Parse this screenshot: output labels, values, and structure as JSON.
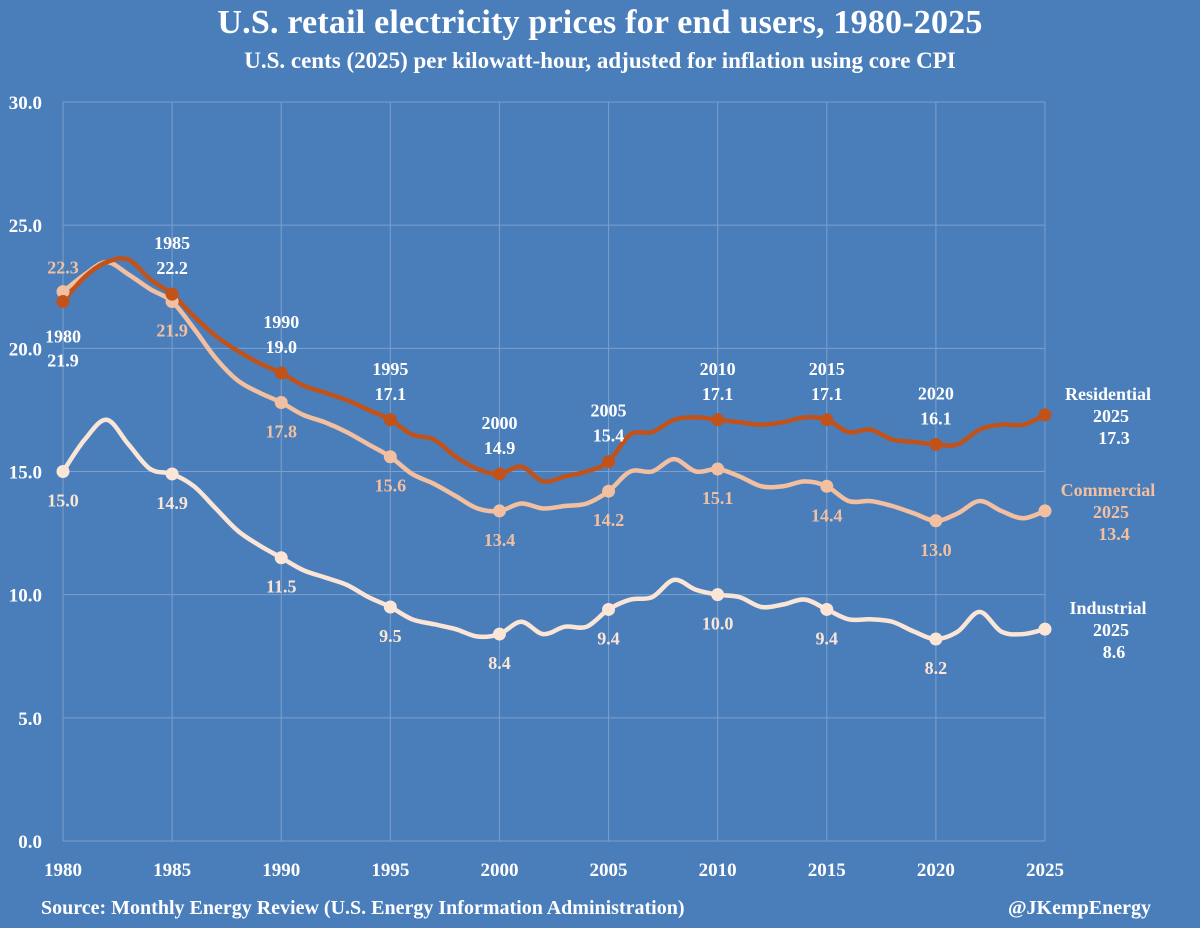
{
  "colors": {
    "background": "#4a7ebb",
    "grid": "#7c9fcc",
    "residential": "#c0521a",
    "commercial": "#f2c0a0",
    "industrial": "#fbe5d6",
    "axis_text": "#ffffff"
  },
  "footer": {
    "source": "Source: Monthly Energy Review (U.S. Energy Information Administration)",
    "handle": "@JKempEnergy"
  },
  "chart_data": {
    "type": "line",
    "title": "U.S. retail electricity prices for end users, 1980-2025",
    "subtitle": "U.S. cents (2025) per kilowatt-hour, adjusted for inflation using core CPI",
    "xlabel": "",
    "ylabel": "",
    "xlim": [
      1980,
      2025
    ],
    "ylim": [
      0,
      30
    ],
    "xticks": [
      "1980",
      "1985",
      "1990",
      "1995",
      "2000",
      "2005",
      "2010",
      "2015",
      "2020",
      "2025"
    ],
    "yticks": [
      "0.0",
      "5.0",
      "10.0",
      "15.0",
      "20.0",
      "25.0",
      "30.0"
    ],
    "grid": true,
    "series": [
      {
        "name": "Residential",
        "color_key": "residential",
        "x": [
          1980,
          1981,
          1982,
          1983,
          1984,
          1985,
          1986,
          1987,
          1988,
          1989,
          1990,
          1991,
          1992,
          1993,
          1994,
          1995,
          1996,
          1997,
          1998,
          1999,
          2000,
          2001,
          2002,
          2003,
          2004,
          2005,
          2006,
          2007,
          2008,
          2009,
          2010,
          2011,
          2012,
          2013,
          2014,
          2015,
          2016,
          2017,
          2018,
          2019,
          2020,
          2021,
          2022,
          2023,
          2024,
          2025
        ],
        "values": [
          21.9,
          22.9,
          23.5,
          23.6,
          22.8,
          22.2,
          21.3,
          20.5,
          19.9,
          19.4,
          19.0,
          18.5,
          18.2,
          17.9,
          17.5,
          17.1,
          16.5,
          16.3,
          15.6,
          15.1,
          14.9,
          15.2,
          14.6,
          14.8,
          15.0,
          15.4,
          16.5,
          16.6,
          17.1,
          17.2,
          17.1,
          17.0,
          16.9,
          17.0,
          17.2,
          17.1,
          16.6,
          16.7,
          16.3,
          16.2,
          16.1,
          16.1,
          16.7,
          16.9,
          16.9,
          17.3
        ],
        "markers": [
          {
            "x": 1980,
            "year": "1980",
            "value": "21.9"
          },
          {
            "x": 1985,
            "year": "1985",
            "value": "22.2"
          },
          {
            "x": 1990,
            "year": "1990",
            "value": "19.0"
          },
          {
            "x": 1995,
            "year": "1995",
            "value": "17.1"
          },
          {
            "x": 2000,
            "year": "2000",
            "value": "14.9"
          },
          {
            "x": 2005,
            "year": "2005",
            "value": "15.4"
          },
          {
            "x": 2010,
            "year": "2010",
            "value": "17.1"
          },
          {
            "x": 2015,
            "year": "2015",
            "value": "17.1"
          },
          {
            "x": 2020,
            "year": "2020",
            "value": "16.1"
          }
        ],
        "end_label": {
          "name": "Residential",
          "year": "2025",
          "value": "17.3"
        }
      },
      {
        "name": "Commercial",
        "color_key": "commercial",
        "x": [
          1980,
          1981,
          1982,
          1983,
          1984,
          1985,
          1986,
          1987,
          1988,
          1989,
          1990,
          1991,
          1992,
          1993,
          1994,
          1995,
          1996,
          1997,
          1998,
          1999,
          2000,
          2001,
          2002,
          2003,
          2004,
          2005,
          2006,
          2007,
          2008,
          2009,
          2010,
          2011,
          2012,
          2013,
          2014,
          2015,
          2016,
          2017,
          2018,
          2019,
          2020,
          2021,
          2022,
          2023,
          2024,
          2025
        ],
        "values": [
          22.3,
          23.0,
          23.5,
          23.0,
          22.4,
          21.9,
          20.8,
          19.6,
          18.7,
          18.2,
          17.8,
          17.3,
          17.0,
          16.6,
          16.1,
          15.6,
          14.9,
          14.5,
          14.0,
          13.5,
          13.4,
          13.7,
          13.5,
          13.6,
          13.7,
          14.2,
          15.0,
          15.0,
          15.5,
          15.0,
          15.1,
          14.8,
          14.4,
          14.4,
          14.6,
          14.4,
          13.8,
          13.8,
          13.6,
          13.3,
          13.0,
          13.3,
          13.8,
          13.4,
          13.1,
          13.4
        ],
        "markers": [
          {
            "x": 1980,
            "value": "22.3"
          },
          {
            "x": 1985,
            "value": "21.9"
          },
          {
            "x": 1990,
            "value": "17.8"
          },
          {
            "x": 1995,
            "value": "15.6"
          },
          {
            "x": 2000,
            "value": "13.4"
          },
          {
            "x": 2005,
            "value": "14.2"
          },
          {
            "x": 2010,
            "value": "15.1"
          },
          {
            "x": 2015,
            "value": "14.4"
          },
          {
            "x": 2020,
            "value": "13.0"
          }
        ],
        "end_label": {
          "name": "Commercial",
          "year": "2025",
          "value": "13.4"
        }
      },
      {
        "name": "Industrial",
        "color_key": "industrial",
        "x": [
          1980,
          1981,
          1982,
          1983,
          1984,
          1985,
          1986,
          1987,
          1988,
          1989,
          1990,
          1991,
          1992,
          1993,
          1994,
          1995,
          1996,
          1997,
          1998,
          1999,
          2000,
          2001,
          2002,
          2003,
          2004,
          2005,
          2006,
          2007,
          2008,
          2009,
          2010,
          2011,
          2012,
          2013,
          2014,
          2015,
          2016,
          2017,
          2018,
          2019,
          2020,
          2021,
          2022,
          2023,
          2024,
          2025
        ],
        "values": [
          15.0,
          16.3,
          17.1,
          16.1,
          15.1,
          14.9,
          14.4,
          13.5,
          12.6,
          12.0,
          11.5,
          11.0,
          10.7,
          10.4,
          9.9,
          9.5,
          9.0,
          8.8,
          8.6,
          8.3,
          8.4,
          8.9,
          8.4,
          8.7,
          8.7,
          9.4,
          9.8,
          9.9,
          10.6,
          10.2,
          10.0,
          9.9,
          9.5,
          9.6,
          9.8,
          9.4,
          9.0,
          9.0,
          8.9,
          8.5,
          8.2,
          8.5,
          9.3,
          8.5,
          8.4,
          8.6
        ],
        "markers": [
          {
            "x": 1980,
            "value": "15.0"
          },
          {
            "x": 1985,
            "value": "14.9"
          },
          {
            "x": 1990,
            "value": "11.5"
          },
          {
            "x": 1995,
            "value": "9.5"
          },
          {
            "x": 2000,
            "value": "8.4"
          },
          {
            "x": 2005,
            "value": "9.4"
          },
          {
            "x": 2010,
            "value": "10.0"
          },
          {
            "x": 2015,
            "value": "9.4"
          },
          {
            "x": 2020,
            "value": "8.2"
          }
        ],
        "end_label": {
          "name": "Industrial",
          "year": "2025",
          "value": "8.6"
        }
      }
    ]
  }
}
